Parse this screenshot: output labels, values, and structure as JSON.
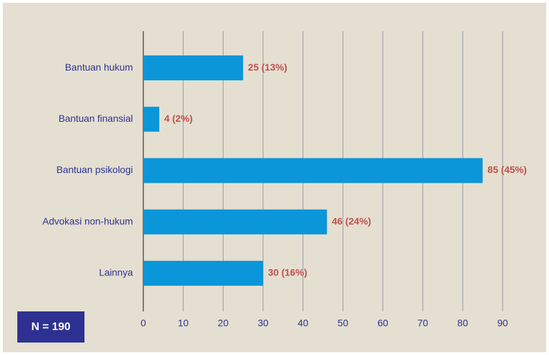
{
  "chart_data": {
    "type": "barh",
    "categories": [
      "Bantuan hukum",
      "Bantuan finansial",
      "Bantuan psikologi",
      "Advokasi non-hukum",
      "Lainnya"
    ],
    "values": [
      25,
      4,
      85,
      46,
      30
    ],
    "value_labels": [
      "25 (13%)",
      "4 (2%)",
      "85 (45%)",
      "46 (24%)",
      "30 (16%)"
    ],
    "color": "#0a96d8",
    "xlim": [
      0,
      90
    ],
    "xticks": [
      0,
      10,
      20,
      30,
      40,
      50,
      60,
      70,
      80,
      90
    ],
    "grid": true,
    "annotation": "N = 190"
  }
}
